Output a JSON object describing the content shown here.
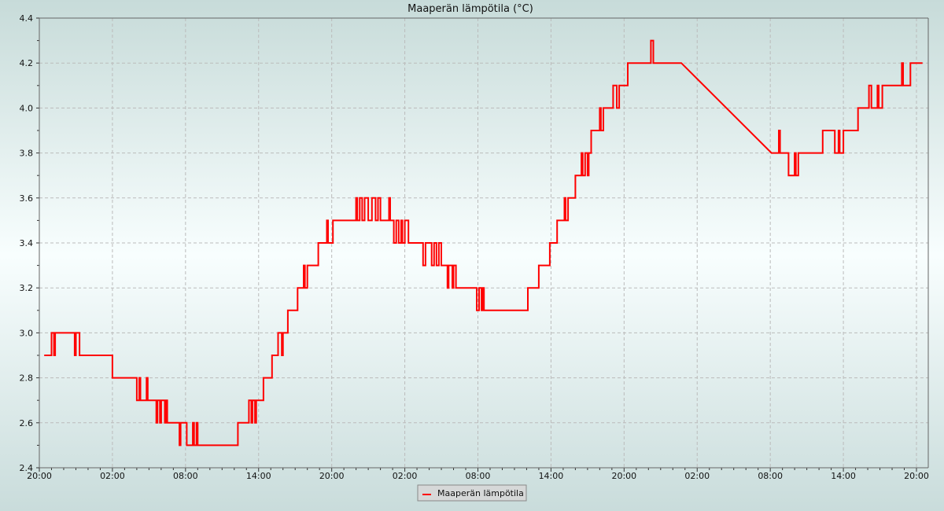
{
  "chart_data": {
    "type": "line",
    "title": "Maaperän lämpötila (°C)",
    "xlabel": "",
    "ylabel": "",
    "x_unit": "hours since first 20:00",
    "xlim": [
      0,
      73
    ],
    "ylim": [
      2.4,
      4.4
    ],
    "grid": true,
    "legend_position": "bottom-center",
    "y_ticks": [
      "2.4",
      "2.6",
      "2.8",
      "3.0",
      "3.2",
      "3.4",
      "3.6",
      "3.8",
      "4.0",
      "4.2",
      "4.4"
    ],
    "x_ticks": [
      "20:00",
      "02:00",
      "08:00",
      "14:00",
      "20:00",
      "02:00",
      "08:00",
      "14:00",
      "20:00",
      "02:00",
      "08:00",
      "14:00",
      "20:00"
    ],
    "series": [
      {
        "name": "Maaperän lämpötila",
        "color": "#ff0000",
        "interpolation": "step-after",
        "linear_gap": [
          52.7,
          60.1
        ],
        "points": [
          [
            0.4,
            2.9
          ],
          [
            1.0,
            3.0
          ],
          [
            1.2,
            2.9
          ],
          [
            1.3,
            3.0
          ],
          [
            2.9,
            2.9
          ],
          [
            3.0,
            3.0
          ],
          [
            3.3,
            2.9
          ],
          [
            6.0,
            2.8
          ],
          [
            8.0,
            2.7
          ],
          [
            8.2,
            2.8
          ],
          [
            8.3,
            2.7
          ],
          [
            8.8,
            2.8
          ],
          [
            8.9,
            2.7
          ],
          [
            9.6,
            2.6
          ],
          [
            9.7,
            2.7
          ],
          [
            9.9,
            2.6
          ],
          [
            10.0,
            2.7
          ],
          [
            10.3,
            2.6
          ],
          [
            10.4,
            2.7
          ],
          [
            10.5,
            2.6
          ],
          [
            11.5,
            2.5
          ],
          [
            11.6,
            2.6
          ],
          [
            12.1,
            2.5
          ],
          [
            12.6,
            2.6
          ],
          [
            12.7,
            2.5
          ],
          [
            12.9,
            2.6
          ],
          [
            13.0,
            2.5
          ],
          [
            16.3,
            2.6
          ],
          [
            17.2,
            2.7
          ],
          [
            17.4,
            2.6
          ],
          [
            17.5,
            2.7
          ],
          [
            17.7,
            2.6
          ],
          [
            17.8,
            2.7
          ],
          [
            18.4,
            2.8
          ],
          [
            19.1,
            2.9
          ],
          [
            19.6,
            3.0
          ],
          [
            19.9,
            2.9
          ],
          [
            20.0,
            3.0
          ],
          [
            20.4,
            3.1
          ],
          [
            21.2,
            3.2
          ],
          [
            21.7,
            3.3
          ],
          [
            21.8,
            3.2
          ],
          [
            22.0,
            3.3
          ],
          [
            22.9,
            3.4
          ],
          [
            23.6,
            3.5
          ],
          [
            23.7,
            3.4
          ],
          [
            24.1,
            3.5
          ],
          [
            26.0,
            3.6
          ],
          [
            26.1,
            3.5
          ],
          [
            26.3,
            3.6
          ],
          [
            26.5,
            3.5
          ],
          [
            26.7,
            3.6
          ],
          [
            27.0,
            3.5
          ],
          [
            27.3,
            3.6
          ],
          [
            27.6,
            3.5
          ],
          [
            27.8,
            3.6
          ],
          [
            28.0,
            3.5
          ],
          [
            28.7,
            3.6
          ],
          [
            28.8,
            3.5
          ],
          [
            29.1,
            3.4
          ],
          [
            29.3,
            3.5
          ],
          [
            29.5,
            3.4
          ],
          [
            29.7,
            3.5
          ],
          [
            29.8,
            3.4
          ],
          [
            30.0,
            3.5
          ],
          [
            30.3,
            3.4
          ],
          [
            31.5,
            3.3
          ],
          [
            31.7,
            3.4
          ],
          [
            32.2,
            3.3
          ],
          [
            32.4,
            3.4
          ],
          [
            32.6,
            3.3
          ],
          [
            32.8,
            3.4
          ],
          [
            33.0,
            3.3
          ],
          [
            33.5,
            3.2
          ],
          [
            33.6,
            3.3
          ],
          [
            33.9,
            3.2
          ],
          [
            34.0,
            3.3
          ],
          [
            34.2,
            3.2
          ],
          [
            35.9,
            3.1
          ],
          [
            36.1,
            3.2
          ],
          [
            36.3,
            3.1
          ],
          [
            36.4,
            3.2
          ],
          [
            36.5,
            3.1
          ],
          [
            40.1,
            3.2
          ],
          [
            41.0,
            3.3
          ],
          [
            41.9,
            3.4
          ],
          [
            42.5,
            3.5
          ],
          [
            43.1,
            3.6
          ],
          [
            43.2,
            3.5
          ],
          [
            43.4,
            3.6
          ],
          [
            44.0,
            3.7
          ],
          [
            44.5,
            3.8
          ],
          [
            44.6,
            3.7
          ],
          [
            44.8,
            3.8
          ],
          [
            45.0,
            3.7
          ],
          [
            45.1,
            3.8
          ],
          [
            45.3,
            3.9
          ],
          [
            46.0,
            4.0
          ],
          [
            46.1,
            3.9
          ],
          [
            46.3,
            4.0
          ],
          [
            47.1,
            4.1
          ],
          [
            47.4,
            4.0
          ],
          [
            47.6,
            4.1
          ],
          [
            48.3,
            4.2
          ],
          [
            50.2,
            4.3
          ],
          [
            50.4,
            4.2
          ],
          [
            52.7,
            4.2
          ],
          [
            60.1,
            3.8
          ],
          [
            60.7,
            3.9
          ],
          [
            60.8,
            3.8
          ],
          [
            61.5,
            3.7
          ],
          [
            62.0,
            3.8
          ],
          [
            62.1,
            3.7
          ],
          [
            62.3,
            3.8
          ],
          [
            64.3,
            3.9
          ],
          [
            65.3,
            3.8
          ],
          [
            65.6,
            3.9
          ],
          [
            65.7,
            3.8
          ],
          [
            66.0,
            3.9
          ],
          [
            67.2,
            4.0
          ],
          [
            68.1,
            4.1
          ],
          [
            68.3,
            4.0
          ],
          [
            68.8,
            4.1
          ],
          [
            68.9,
            4.0
          ],
          [
            69.2,
            4.1
          ],
          [
            70.8,
            4.2
          ],
          [
            70.9,
            4.1
          ],
          [
            71.5,
            4.2
          ],
          [
            72.5,
            4.2
          ]
        ]
      }
    ]
  }
}
